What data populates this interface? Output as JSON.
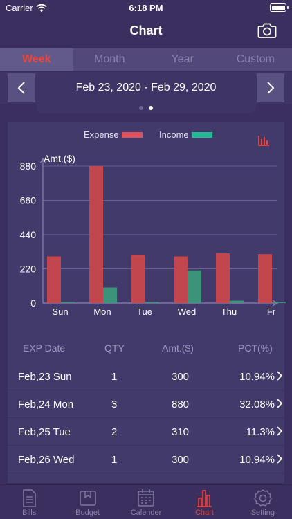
{
  "status": {
    "carrier": "Carrier",
    "time": "6:18 PM"
  },
  "nav": {
    "title": "Chart"
  },
  "tabs": [
    "Week",
    "Month",
    "Year",
    "Custom"
  ],
  "active_tab": "Week",
  "date_range": "Feb 23, 2020 - Feb 29, 2020",
  "legend": {
    "expense": "Expense",
    "income": "Income"
  },
  "colors": {
    "expense": "#c2464e",
    "income": "#3b9479",
    "accent": "#e8453c"
  },
  "chart_data": {
    "type": "bar",
    "ylabel": "Amt.($)",
    "yticks": [
      0,
      220,
      440,
      660,
      880
    ],
    "ylim": [
      0,
      880
    ],
    "categories": [
      "Sun",
      "Mon",
      "Tue",
      "Wed",
      "Thu",
      "Fr"
    ],
    "series": [
      {
        "name": "Expense",
        "values": [
          300,
          880,
          310,
          300,
          320,
          315
        ]
      },
      {
        "name": "Income",
        "values": [
          0,
          100,
          0,
          210,
          15,
          0
        ]
      }
    ],
    "grid": true,
    "legend_position": "top-center"
  },
  "table": {
    "headers": [
      "EXP Date",
      "QTY",
      "Amt.($)",
      "PCT(%)"
    ],
    "rows": [
      {
        "date": "Feb,23 Sun",
        "qty": "1",
        "amt": "300",
        "pct": "10.94%"
      },
      {
        "date": "Feb,24 Mon",
        "qty": "3",
        "amt": "880",
        "pct": "32.08%"
      },
      {
        "date": "Feb,25 Tue",
        "qty": "2",
        "amt": "310",
        "pct": "11.3%"
      },
      {
        "date": "Feb,26 Wed",
        "qty": "1",
        "amt": "300",
        "pct": "10.94%"
      }
    ]
  },
  "tabbar": [
    {
      "label": "Bills",
      "icon": "bills-icon"
    },
    {
      "label": "Budget",
      "icon": "budget-icon"
    },
    {
      "label": "Calender",
      "icon": "calendar-icon"
    },
    {
      "label": "Chart",
      "icon": "chart-icon",
      "active": true
    },
    {
      "label": "Setting",
      "icon": "gear-icon"
    }
  ]
}
